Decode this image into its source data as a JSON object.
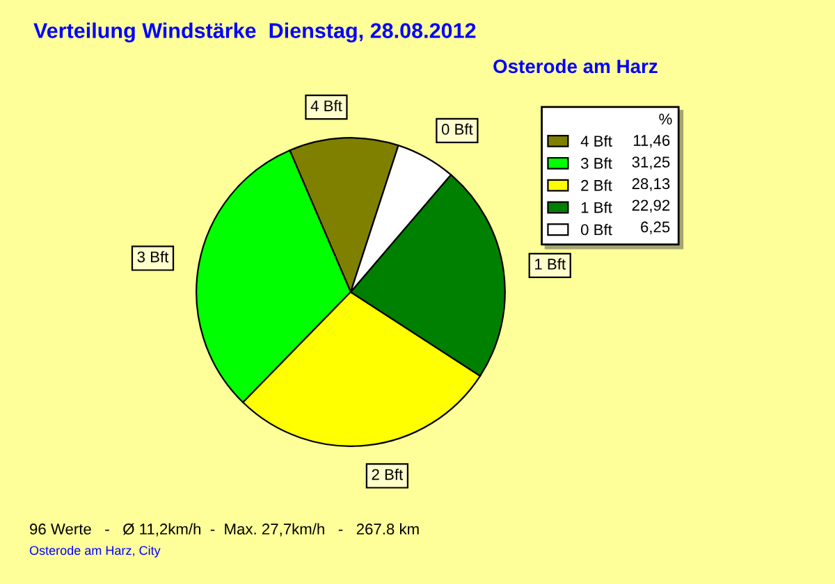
{
  "chart_data": {
    "type": "pie",
    "title": "Verteilung Windstärke  Dienstag, 28.08.2012",
    "subtitle": "Osterode am Harz",
    "categories": [
      "4 Bft",
      "3 Bft",
      "2 Bft",
      "1 Bft",
      "0 Bft"
    ],
    "values": [
      11.46,
      31.25,
      28.13,
      22.92,
      6.25
    ],
    "value_labels": [
      "11,46",
      "31,25",
      "28,13",
      "22,92",
      "6,25"
    ],
    "colors": [
      "#808000",
      "#00ff00",
      "#ffff00",
      "#008000",
      "#ffffff"
    ],
    "legend": "top right",
    "legend_title": "%",
    "annotations": [
      "96 Werte   -   Ø 11,2km/h  -  Max. 27,7km/h   -   267.8 km",
      "Osterode am Harz, City"
    ]
  }
}
